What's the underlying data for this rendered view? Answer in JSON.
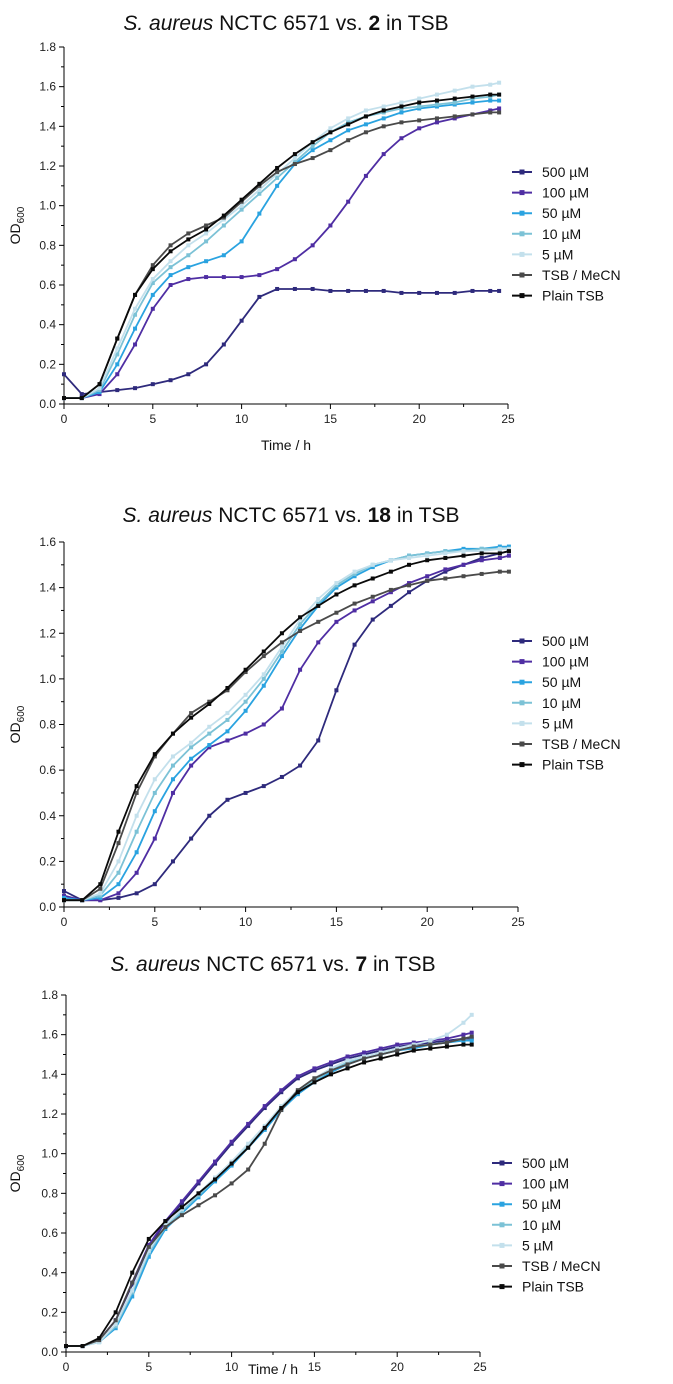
{
  "series_styles": [
    {
      "label": "500 µM",
      "color": "#2e2a7c"
    },
    {
      "label": "100 µM",
      "color": "#4f2ea3"
    },
    {
      "label": "50 µM",
      "color": "#2aa3e0"
    },
    {
      "label": "10 µM",
      "color": "#7cc2d6"
    },
    {
      "label": "5 µM",
      "color": "#c3e0ec"
    },
    {
      "label": "TSB / MeCN",
      "color": "#4a4a4a"
    },
    {
      "label": "Plain TSB",
      "color": "#0a0a0a"
    }
  ],
  "chart_data": [
    {
      "type": "line",
      "title": {
        "pre": "S. aureus",
        "mid": " NCTC 6571 vs. ",
        "bold": "2",
        "post": " in TSB"
      },
      "xlabel": "Time / h",
      "ylabel": {
        "main": "OD",
        "sub": "600"
      },
      "xlim": [
        0,
        25
      ],
      "ylim": [
        0,
        1.8
      ],
      "xticks": [
        "0",
        "5",
        "10",
        "15",
        "20",
        "25"
      ],
      "yticks": [
        "0.0",
        "0.2",
        "0.4",
        "0.6",
        "0.8",
        "1.0",
        "1.2",
        "1.4",
        "1.6",
        "1.8"
      ],
      "x": [
        0,
        1,
        2,
        3,
        4,
        5,
        6,
        7,
        8,
        9,
        10,
        11,
        12,
        13,
        14,
        15,
        16,
        17,
        18,
        19,
        20,
        21,
        22,
        23,
        24,
        24.5
      ],
      "series": [
        {
          "name": "500 µM",
          "values": [
            0.15,
            0.05,
            0.06,
            0.07,
            0.08,
            0.1,
            0.12,
            0.15,
            0.2,
            0.3,
            0.42,
            0.54,
            0.58,
            0.58,
            0.58,
            0.57,
            0.57,
            0.57,
            0.57,
            0.56,
            0.56,
            0.56,
            0.56,
            0.57,
            0.57,
            0.57
          ]
        },
        {
          "name": "100 µM",
          "values": [
            0.03,
            0.03,
            0.05,
            0.15,
            0.3,
            0.48,
            0.6,
            0.63,
            0.64,
            0.64,
            0.64,
            0.65,
            0.68,
            0.73,
            0.8,
            0.9,
            1.02,
            1.15,
            1.26,
            1.34,
            1.39,
            1.42,
            1.44,
            1.46,
            1.48,
            1.49
          ]
        },
        {
          "name": "50 µM",
          "values": [
            0.03,
            0.03,
            0.06,
            0.2,
            0.38,
            0.55,
            0.65,
            0.69,
            0.72,
            0.75,
            0.82,
            0.96,
            1.1,
            1.21,
            1.28,
            1.33,
            1.38,
            1.41,
            1.44,
            1.47,
            1.49,
            1.5,
            1.51,
            1.52,
            1.53,
            1.53
          ]
        },
        {
          "name": "10 µM",
          "values": [
            0.03,
            0.03,
            0.07,
            0.25,
            0.45,
            0.61,
            0.69,
            0.75,
            0.82,
            0.9,
            0.98,
            1.06,
            1.14,
            1.22,
            1.3,
            1.37,
            1.42,
            1.45,
            1.47,
            1.49,
            1.5,
            1.51,
            1.52,
            1.54,
            1.55,
            1.56
          ]
        },
        {
          "name": "5 µM",
          "values": [
            0.03,
            0.03,
            0.08,
            0.28,
            0.48,
            0.63,
            0.72,
            0.8,
            0.86,
            0.93,
            1.0,
            1.08,
            1.16,
            1.24,
            1.32,
            1.39,
            1.44,
            1.48,
            1.5,
            1.52,
            1.54,
            1.56,
            1.58,
            1.6,
            1.61,
            1.62
          ]
        },
        {
          "name": "TSB / MeCN",
          "values": [
            0.03,
            0.03,
            0.1,
            0.33,
            0.55,
            0.7,
            0.8,
            0.86,
            0.9,
            0.94,
            1.02,
            1.1,
            1.17,
            1.21,
            1.24,
            1.28,
            1.33,
            1.37,
            1.4,
            1.42,
            1.43,
            1.44,
            1.45,
            1.46,
            1.47,
            1.47
          ]
        },
        {
          "name": "Plain TSB",
          "values": [
            0.03,
            0.03,
            0.1,
            0.33,
            0.55,
            0.68,
            0.77,
            0.83,
            0.88,
            0.95,
            1.03,
            1.11,
            1.19,
            1.26,
            1.32,
            1.37,
            1.41,
            1.45,
            1.48,
            1.5,
            1.52,
            1.53,
            1.54,
            1.55,
            1.56,
            1.56
          ]
        }
      ]
    },
    {
      "type": "line",
      "title": {
        "pre": "S. aureus",
        "mid": " NCTC 6571 vs. ",
        "bold": "18",
        "post": " in TSB"
      },
      "xlabel": "",
      "ylabel": {
        "main": "OD",
        "sub": "600"
      },
      "xlim": [
        0,
        25
      ],
      "ylim": [
        0,
        1.6
      ],
      "xticks": [
        "0",
        "5",
        "10",
        "15",
        "20",
        "25"
      ],
      "yticks": [
        "0.0",
        "0.2",
        "0.4",
        "0.6",
        "0.8",
        "1.0",
        "1.2",
        "1.4",
        "1.6"
      ],
      "x": [
        0,
        1,
        2,
        3,
        4,
        5,
        6,
        7,
        8,
        9,
        10,
        11,
        12,
        13,
        14,
        15,
        16,
        17,
        18,
        19,
        20,
        21,
        22,
        23,
        24,
        24.5
      ],
      "series": [
        {
          "name": "500 µM",
          "values": [
            0.07,
            0.03,
            0.03,
            0.04,
            0.06,
            0.1,
            0.2,
            0.3,
            0.4,
            0.47,
            0.5,
            0.53,
            0.57,
            0.62,
            0.73,
            0.95,
            1.15,
            1.26,
            1.32,
            1.38,
            1.43,
            1.47,
            1.5,
            1.53,
            1.55,
            1.56
          ]
        },
        {
          "name": "100 µM",
          "values": [
            0.05,
            0.03,
            0.03,
            0.06,
            0.15,
            0.3,
            0.5,
            0.62,
            0.7,
            0.73,
            0.76,
            0.8,
            0.87,
            1.04,
            1.16,
            1.25,
            1.3,
            1.34,
            1.38,
            1.42,
            1.45,
            1.48,
            1.5,
            1.52,
            1.53,
            1.54
          ]
        },
        {
          "name": "50 µM",
          "values": [
            0.04,
            0.03,
            0.04,
            0.1,
            0.24,
            0.42,
            0.56,
            0.65,
            0.71,
            0.77,
            0.86,
            0.97,
            1.1,
            1.22,
            1.32,
            1.4,
            1.45,
            1.49,
            1.52,
            1.54,
            1.55,
            1.56,
            1.57,
            1.57,
            1.58,
            1.58
          ]
        },
        {
          "name": "10 µM",
          "values": [
            0.03,
            0.03,
            0.05,
            0.15,
            0.33,
            0.5,
            0.62,
            0.7,
            0.76,
            0.82,
            0.9,
            1.0,
            1.12,
            1.24,
            1.33,
            1.41,
            1.46,
            1.5,
            1.52,
            1.54,
            1.55,
            1.56,
            1.56,
            1.57,
            1.57,
            1.57
          ]
        },
        {
          "name": "5 µM",
          "values": [
            0.03,
            0.03,
            0.06,
            0.2,
            0.4,
            0.56,
            0.66,
            0.72,
            0.79,
            0.85,
            0.93,
            1.02,
            1.14,
            1.26,
            1.35,
            1.42,
            1.47,
            1.5,
            1.52,
            1.53,
            1.54,
            1.55,
            1.56,
            1.56,
            1.57,
            1.57
          ]
        },
        {
          "name": "TSB / MeCN",
          "values": [
            0.03,
            0.03,
            0.08,
            0.28,
            0.5,
            0.66,
            0.76,
            0.85,
            0.9,
            0.95,
            1.03,
            1.1,
            1.16,
            1.21,
            1.25,
            1.29,
            1.33,
            1.36,
            1.39,
            1.41,
            1.43,
            1.44,
            1.45,
            1.46,
            1.47,
            1.47
          ]
        },
        {
          "name": "Plain TSB",
          "values": [
            0.03,
            0.03,
            0.1,
            0.33,
            0.53,
            0.67,
            0.76,
            0.83,
            0.89,
            0.96,
            1.04,
            1.12,
            1.2,
            1.27,
            1.32,
            1.37,
            1.41,
            1.44,
            1.47,
            1.5,
            1.52,
            1.53,
            1.54,
            1.55,
            1.55,
            1.56
          ]
        }
      ]
    },
    {
      "type": "line",
      "title": {
        "pre": "S. aureus",
        "mid": " NCTC 6571 vs. ",
        "bold": "7",
        "post": " in TSB"
      },
      "xlabel": "Time / h",
      "ylabel": {
        "main": "OD",
        "sub": "600"
      },
      "xlim": [
        0,
        25
      ],
      "ylim": [
        0,
        1.8
      ],
      "xticks": [
        "0",
        "5",
        "10",
        "15",
        "20",
        "25"
      ],
      "yticks": [
        "0.0",
        "0.2",
        "0.4",
        "0.6",
        "0.8",
        "1.0",
        "1.2",
        "1.4",
        "1.6",
        "1.8"
      ],
      "x": [
        0,
        1,
        2,
        3,
        4,
        5,
        6,
        7,
        8,
        9,
        10,
        11,
        12,
        13,
        14,
        15,
        16,
        17,
        18,
        19,
        20,
        21,
        22,
        23,
        24,
        24.5
      ],
      "series": [
        {
          "name": "500 µM",
          "values": [
            0.03,
            0.03,
            0.06,
            0.16,
            0.34,
            0.53,
            0.65,
            0.75,
            0.85,
            0.95,
            1.05,
            1.14,
            1.23,
            1.31,
            1.38,
            1.42,
            1.45,
            1.48,
            1.5,
            1.52,
            1.54,
            1.55,
            1.56,
            1.57,
            1.58,
            1.58
          ]
        },
        {
          "name": "100 µM",
          "values": [
            0.03,
            0.03,
            0.06,
            0.16,
            0.35,
            0.54,
            0.66,
            0.76,
            0.86,
            0.96,
            1.06,
            1.15,
            1.24,
            1.32,
            1.39,
            1.43,
            1.46,
            1.49,
            1.51,
            1.53,
            1.55,
            1.56,
            1.57,
            1.58,
            1.6,
            1.61
          ]
        },
        {
          "name": "50 µM",
          "values": [
            0.03,
            0.03,
            0.05,
            0.12,
            0.28,
            0.48,
            0.62,
            0.7,
            0.78,
            0.86,
            0.94,
            1.03,
            1.12,
            1.22,
            1.3,
            1.36,
            1.41,
            1.45,
            1.48,
            1.5,
            1.52,
            1.53,
            1.55,
            1.56,
            1.57,
            1.57
          ]
        },
        {
          "name": "10 µM",
          "values": [
            0.03,
            0.03,
            0.05,
            0.13,
            0.3,
            0.5,
            0.63,
            0.71,
            0.79,
            0.87,
            0.95,
            1.04,
            1.13,
            1.23,
            1.31,
            1.37,
            1.42,
            1.46,
            1.48,
            1.5,
            1.52,
            1.54,
            1.55,
            1.56,
            1.58,
            1.59
          ]
        },
        {
          "name": "5 µM",
          "values": [
            0.03,
            0.03,
            0.05,
            0.14,
            0.31,
            0.51,
            0.64,
            0.72,
            0.8,
            0.88,
            0.96,
            1.05,
            1.14,
            1.24,
            1.32,
            1.38,
            1.43,
            1.47,
            1.49,
            1.51,
            1.53,
            1.55,
            1.57,
            1.6,
            1.66,
            1.7
          ]
        },
        {
          "name": "TSB / MeCN",
          "values": [
            0.03,
            0.03,
            0.06,
            0.16,
            0.35,
            0.53,
            0.63,
            0.69,
            0.74,
            0.79,
            0.85,
            0.92,
            1.05,
            1.22,
            1.32,
            1.38,
            1.42,
            1.45,
            1.48,
            1.5,
            1.52,
            1.54,
            1.55,
            1.56,
            1.58,
            1.59
          ]
        },
        {
          "name": "Plain TSB",
          "values": [
            0.03,
            0.03,
            0.07,
            0.2,
            0.4,
            0.57,
            0.66,
            0.73,
            0.8,
            0.87,
            0.95,
            1.03,
            1.13,
            1.23,
            1.31,
            1.36,
            1.4,
            1.43,
            1.46,
            1.48,
            1.5,
            1.52,
            1.53,
            1.54,
            1.55,
            1.55
          ]
        }
      ]
    }
  ]
}
